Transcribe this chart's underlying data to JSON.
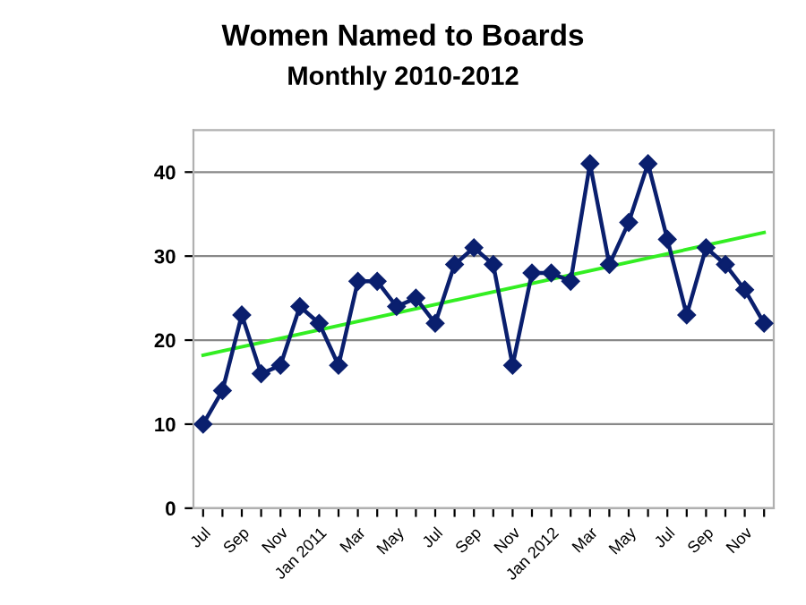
{
  "chart_data": {
    "type": "line",
    "title": "Women Named to Boards",
    "subtitle": "Monthly 2010-2012",
    "categories": [
      "Jul",
      null,
      "Sep",
      null,
      "Nov",
      null,
      "Jan 2011",
      null,
      "Mar",
      null,
      "May",
      null,
      "Jul",
      null,
      "Sep",
      null,
      "Nov",
      null,
      "Jan 2012",
      null,
      "Mar",
      null,
      "May",
      null,
      "Jul",
      null,
      "Sep",
      null,
      "Nov",
      null
    ],
    "series": [
      {
        "color": "#0a1f6e",
        "marker": "diamond",
        "values": [
          10,
          14,
          23,
          16,
          17,
          24,
          22,
          17,
          27,
          27,
          24,
          25,
          22,
          29,
          31,
          29,
          17,
          28,
          28,
          27,
          41,
          29,
          34,
          41,
          32,
          23,
          31,
          29,
          26,
          22
        ]
      },
      {
        "color": "#33ee22",
        "marker": "none",
        "values": [
          18.2,
          null,
          null,
          null,
          null,
          null,
          null,
          null,
          null,
          null,
          null,
          null,
          null,
          null,
          null,
          null,
          null,
          null,
          null,
          null,
          null,
          null,
          null,
          null,
          null,
          null,
          null,
          null,
          null,
          32.8
        ]
      }
    ],
    "ylim": [
      0,
      45
    ],
    "yticks": [
      0,
      10,
      20,
      30,
      40
    ],
    "grid": "y",
    "legend": false
  }
}
